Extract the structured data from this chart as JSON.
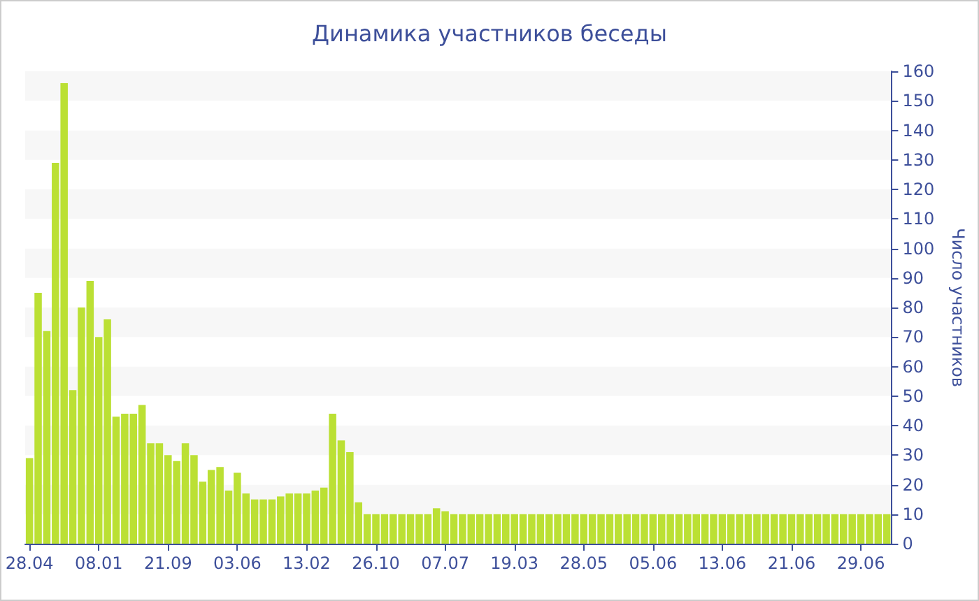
{
  "chart_data": {
    "type": "bar",
    "title": "Динамика участников беседы",
    "ylabel": "Число участников",
    "categories": [
      "28.04",
      null,
      null,
      null,
      null,
      null,
      null,
      null,
      "08.01",
      null,
      null,
      null,
      null,
      null,
      null,
      null,
      "21.09",
      null,
      null,
      null,
      null,
      null,
      null,
      null,
      "03.06",
      null,
      null,
      null,
      null,
      null,
      null,
      null,
      "13.02",
      null,
      null,
      null,
      null,
      null,
      null,
      null,
      "26.10",
      null,
      null,
      null,
      null,
      null,
      null,
      null,
      "07.07",
      null,
      null,
      null,
      null,
      null,
      null,
      null,
      "19.03",
      null,
      null,
      null,
      null,
      null,
      null,
      null,
      "28.05",
      null,
      null,
      null,
      null,
      null,
      null,
      null,
      "05.06",
      null,
      null,
      null,
      null,
      null,
      null,
      null,
      "13.06",
      null,
      null,
      null,
      null,
      null,
      null,
      null,
      "21.06",
      null,
      null,
      null,
      null,
      null,
      null,
      null,
      "29.06",
      null,
      null,
      null
    ],
    "values": [
      29,
      85,
      72,
      129,
      156,
      52,
      80,
      89,
      70,
      76,
      43,
      44,
      44,
      47,
      34,
      34,
      30,
      28,
      34,
      30,
      21,
      25,
      26,
      18,
      24,
      17,
      15,
      15,
      15,
      16,
      17,
      17,
      17,
      18,
      19,
      44,
      35,
      31,
      14,
      10,
      10,
      10,
      10,
      10,
      10,
      10,
      10,
      12,
      11,
      10,
      10,
      10,
      10,
      10,
      10,
      10,
      10,
      10,
      10,
      10,
      10,
      10,
      10,
      10,
      10,
      10,
      10,
      10,
      10,
      10,
      10,
      10,
      10,
      10,
      10,
      10,
      10,
      10,
      10,
      10,
      10,
      10,
      10,
      10,
      10,
      10,
      10,
      10,
      10,
      10,
      10,
      10,
      10,
      10,
      10,
      10,
      10,
      10,
      10,
      10
    ],
    "color": "#bbe034",
    "ylim": [
      0,
      160
    ],
    "yticks": [
      0,
      10,
      20,
      30,
      40,
      50,
      60,
      70,
      80,
      90,
      100,
      110,
      120,
      130,
      140,
      150,
      160
    ]
  }
}
